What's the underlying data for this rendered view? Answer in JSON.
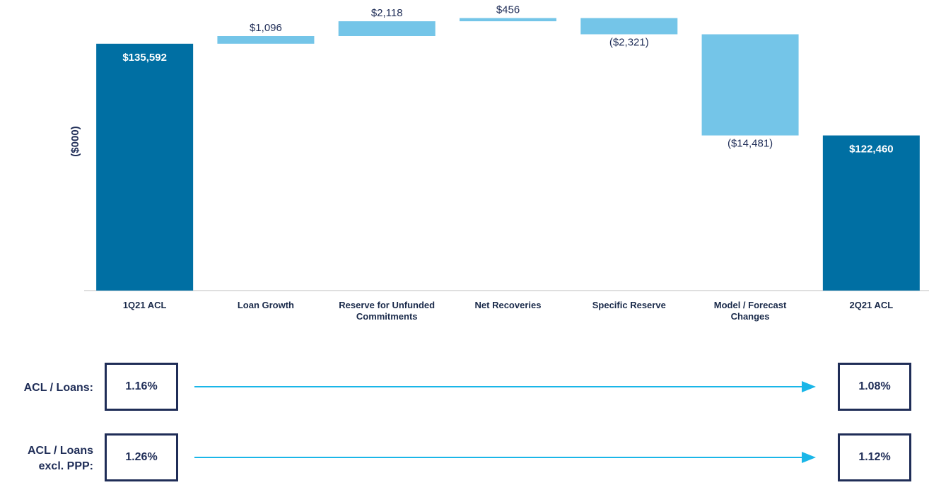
{
  "chart_data": {
    "type": "waterfall",
    "y_label": "($000)",
    "categories": [
      "1Q21 ACL",
      "Loan Growth",
      "Reserve for Unfunded Commitments",
      "Net Recoveries",
      "Specific Reserve",
      "Model / Forecast Changes",
      "2Q21 ACL"
    ],
    "values": [
      135592,
      1096,
      2118,
      456,
      -2321,
      -14481,
      122460
    ],
    "value_labels": [
      "$135,592",
      "$1,096",
      "$2,118",
      "$456",
      "($2,321)",
      "($14,481)",
      "$122,460"
    ],
    "colors": [
      "#006fa3",
      "#74c5e8",
      "#74c5e8",
      "#74c5e8",
      "#74c5e8",
      "#74c5e8",
      "#006fa3"
    ],
    "ylim": [
      100250,
      141850
    ]
  },
  "metrics": [
    {
      "label": "ACL / Loans:",
      "start": "1.16%",
      "end": "1.08%"
    },
    {
      "label": "ACL / Loans excl. PPP:",
      "start": "1.26%",
      "end": "1.12%"
    }
  ]
}
